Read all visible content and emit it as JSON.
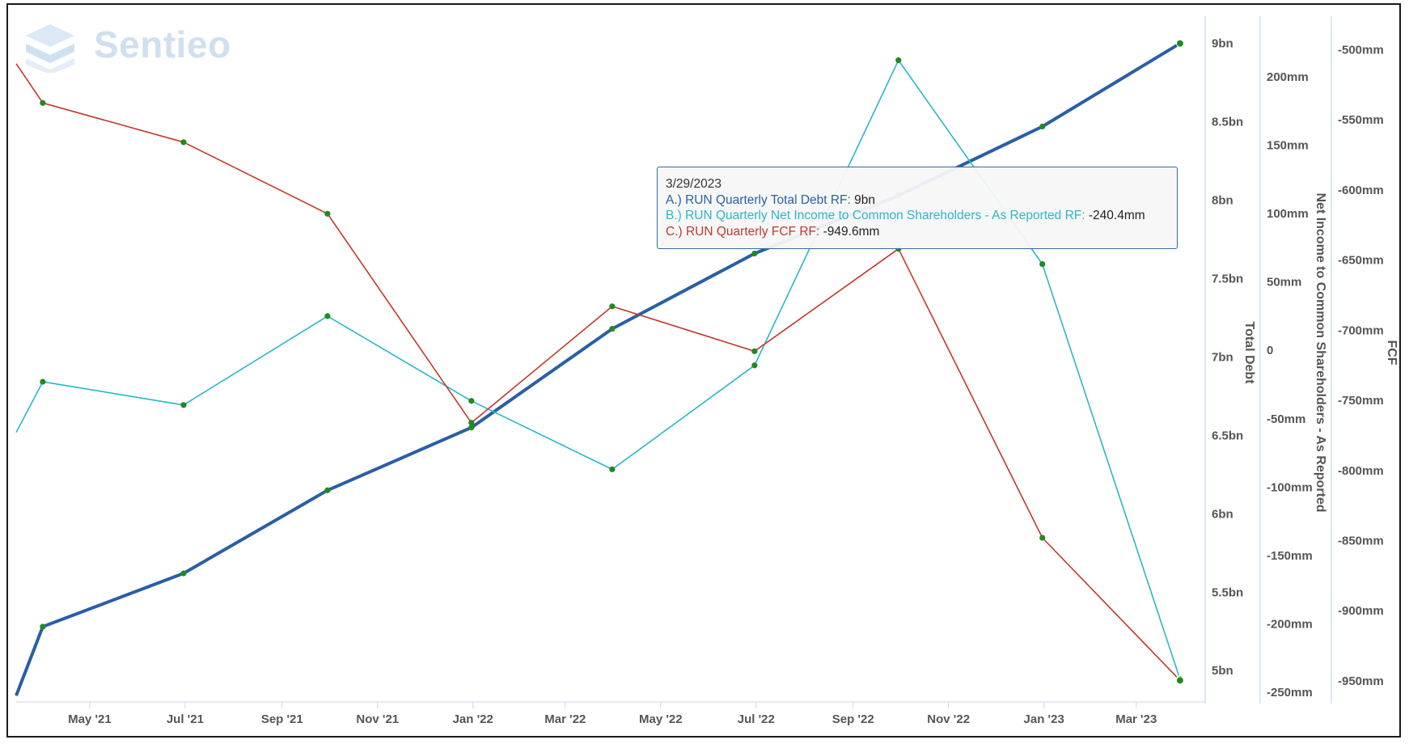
{
  "branding": {
    "logo_text": "Sentieo"
  },
  "tooltip": {
    "date": "3/29/2023",
    "rows": [
      {
        "label": "A.) RUN Quarterly Total Debt RF:",
        "value": "9bn",
        "color": "#2a5fa5"
      },
      {
        "label": "B.) RUN Quarterly Net Income to Common Shareholders - As Reported RF:",
        "value": "-240.4mm",
        "color": "#2bb6cc"
      },
      {
        "label": "C.) RUN Quarterly FCF RF:",
        "value": "-949.6mm",
        "color": "#c0392b"
      }
    ]
  },
  "chart_data": {
    "type": "line",
    "grid": false,
    "x_tick_labels": [
      "May '21",
      "Jul '21",
      "Sep '21",
      "Nov '21",
      "Jan '22",
      "Mar '22",
      "May '22",
      "Jul '22",
      "Sep '22",
      "Nov '22",
      "Jan '23",
      "Mar '23"
    ],
    "x_ticks": [
      "2021-05-01",
      "2021-07-01",
      "2021-09-01",
      "2021-11-01",
      "2022-01-01",
      "2022-03-01",
      "2022-05-01",
      "2022-07-01",
      "2022-09-01",
      "2022-11-01",
      "2023-01-01",
      "2023-03-01"
    ],
    "x_range": [
      "2021-03-15",
      "2023-04-12"
    ],
    "axes": [
      {
        "id": "debt",
        "title": "Total Debt",
        "range": [
          4.8,
          9.05
        ],
        "tick_values": [
          5,
          5.5,
          6,
          6.5,
          7,
          7.5,
          8,
          8.5,
          9
        ],
        "tick_labels": [
          "5bn",
          "5.5bn",
          "6bn",
          "6.5bn",
          "7bn",
          "7.5bn",
          "8bn",
          "8.5bn",
          "9bn"
        ]
      },
      {
        "id": "ni",
        "title": "Net Income to Common Shareholders - As Reported",
        "range": [
          -257,
          230
        ],
        "tick_values": [
          -250,
          -200,
          -150,
          -100,
          -50,
          0,
          50,
          100,
          150,
          200
        ],
        "tick_labels": [
          "-250mm",
          "-200mm",
          "-150mm",
          "-100mm",
          "-50mm",
          "0",
          "50mm",
          "100mm",
          "150mm",
          "200mm"
        ]
      },
      {
        "id": "fcf",
        "title": "FCF",
        "range": [
          -965,
          -490
        ],
        "tick_values": [
          -950,
          -900,
          -850,
          -800,
          -750,
          -700,
          -650,
          -600,
          -550,
          -500
        ],
        "tick_labels": [
          "-950mm",
          "-900mm",
          "-850mm",
          "-800mm",
          "-750mm",
          "-700mm",
          "-650mm",
          "-600mm",
          "-550mm",
          "-500mm"
        ]
      }
    ],
    "series": [
      {
        "name": "A.) RUN Quarterly Total Debt RF",
        "axis": "debt",
        "color": "#2a5fa5",
        "lead_in": {
          "x": "2021-03-15",
          "y": 4.84
        },
        "points": [
          {
            "x": "2021-04-01",
            "y": 5.28
          },
          {
            "x": "2021-06-30",
            "y": 5.62
          },
          {
            "x": "2021-09-30",
            "y": 6.15
          },
          {
            "x": "2021-12-31",
            "y": 6.55
          },
          {
            "x": "2022-03-31",
            "y": 7.18
          },
          {
            "x": "2022-06-30",
            "y": 7.66
          },
          {
            "x": "2022-09-30",
            "y": 8.03
          },
          {
            "x": "2022-12-31",
            "y": 8.47
          },
          {
            "x": "2023-03-29",
            "y": 9.0
          }
        ]
      },
      {
        "name": "B.) RUN Quarterly Net Income to Common Shareholders - As Reported",
        "axis": "ni",
        "color": "#2bb6cc",
        "lead_in": {
          "x": "2021-03-15",
          "y": -60
        },
        "points": [
          {
            "x": "2021-04-01",
            "y": -23
          },
          {
            "x": "2021-06-30",
            "y": -40
          },
          {
            "x": "2021-09-30",
            "y": 25
          },
          {
            "x": "2021-12-31",
            "y": -37
          },
          {
            "x": "2022-03-31",
            "y": -87
          },
          {
            "x": "2022-06-30",
            "y": -11
          },
          {
            "x": "2022-09-30",
            "y": 212
          },
          {
            "x": "2022-12-31",
            "y": 63
          },
          {
            "x": "2023-03-29",
            "y": -240.4
          }
        ]
      },
      {
        "name": "C.) RUN Quarterly FCF RF",
        "axis": "fcf",
        "color": "#c0392b",
        "lead_in": {
          "x": "2021-03-15",
          "y": -510
        },
        "points": [
          {
            "x": "2021-04-01",
            "y": -538
          },
          {
            "x": "2021-06-30",
            "y": -566
          },
          {
            "x": "2021-09-30",
            "y": -617
          },
          {
            "x": "2021-12-31",
            "y": -766
          },
          {
            "x": "2022-03-31",
            "y": -683
          },
          {
            "x": "2022-06-30",
            "y": -715
          },
          {
            "x": "2022-09-30",
            "y": -642
          },
          {
            "x": "2022-12-31",
            "y": -848
          },
          {
            "x": "2023-03-29",
            "y": -949.6
          }
        ]
      }
    ],
    "highlight_x": "2023-03-29",
    "marker_color": "#1f8a1f"
  }
}
